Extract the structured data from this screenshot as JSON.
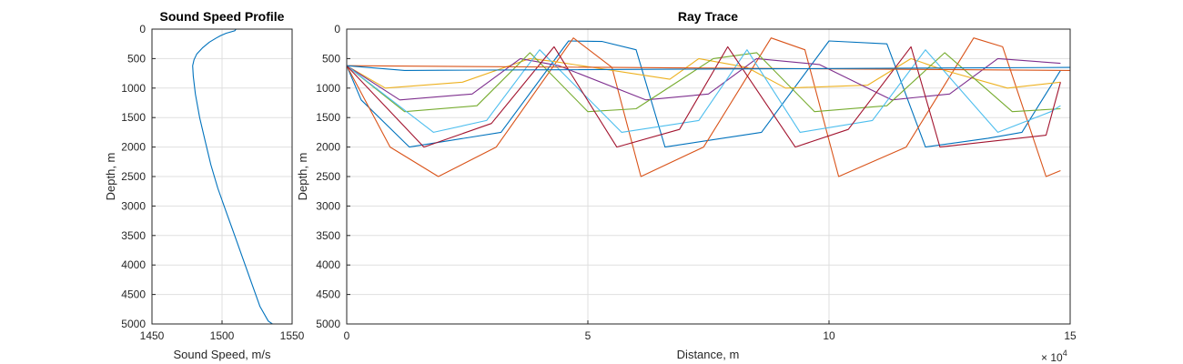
{
  "chart_data": [
    {
      "type": "line",
      "title": "Sound Speed Profile",
      "xlabel": "Sound Speed, m/s",
      "ylabel": "Depth, m",
      "xlim": [
        1450,
        1550
      ],
      "ylim": [
        0,
        5000
      ],
      "y_reversed": true,
      "xticks": [
        1450,
        1500,
        1550
      ],
      "yticks": [
        0,
        500,
        1000,
        1500,
        2000,
        2500,
        3000,
        3500,
        4000,
        4500,
        5000
      ],
      "grid": true,
      "series": [
        {
          "name": "profile",
          "color": "#0072BD",
          "x": [
            1510,
            1509,
            1503,
            1499,
            1496,
            1491,
            1486,
            1482,
            1480,
            1479,
            1479.5,
            1481,
            1484,
            1488,
            1492,
            1497,
            1503,
            1509,
            1515,
            1521,
            1527,
            1533,
            1536
          ],
          "y": [
            0,
            30,
            70,
            110,
            150,
            220,
            320,
            420,
            520,
            620,
            800,
            1100,
            1500,
            1900,
            2300,
            2700,
            3100,
            3500,
            3900,
            4300,
            4700,
            4950,
            5000
          ]
        }
      ]
    },
    {
      "type": "line",
      "title": "Ray Trace",
      "xlabel": "Distance, m",
      "ylabel": "Depth, m",
      "x_exponent_label": "× 10",
      "x_exponent": "4",
      "xlim": [
        0,
        15
      ],
      "xtick_labels_scaled": true,
      "ylim": [
        0,
        5000
      ],
      "y_reversed": true,
      "xticks": [
        0,
        5,
        10,
        15
      ],
      "yticks": [
        0,
        500,
        1000,
        1500,
        2000,
        2500,
        3000,
        3500,
        4000,
        4500,
        5000
      ],
      "grid": true,
      "series": [
        {
          "name": "ray-blue",
          "color": "#0072BD",
          "x": [
            0,
            0.3,
            1.3,
            3.2,
            4.6,
            5.3,
            6.0,
            6.6,
            8.6,
            10.0,
            11.2,
            12.0,
            13.3,
            14.0,
            14.8
          ],
          "y": [
            620,
            1200,
            2000,
            1750,
            200,
            210,
            350,
            2000,
            1750,
            200,
            250,
            2000,
            1850,
            1750,
            700
          ]
        },
        {
          "name": "ray-orange",
          "color": "#D95319",
          "x": [
            0,
            0.9,
            1.9,
            3.1,
            4.7,
            5.5,
            6.1,
            7.4,
            8.8,
            9.5,
            10.2,
            11.6,
            13.0,
            13.6,
            14.5,
            14.8
          ],
          "y": [
            620,
            2000,
            2500,
            2000,
            150,
            650,
            2500,
            2000,
            150,
            350,
            2500,
            2000,
            150,
            300,
            2500,
            2400
          ]
        },
        {
          "name": "ray-yellow",
          "color": "#EDB120",
          "x": [
            0,
            0.8,
            2.4,
            3.8,
            4.3,
            6.7,
            7.3,
            8.3,
            9.1,
            10.8,
            11.7,
            12.4,
            13.7,
            14.8
          ],
          "y": [
            620,
            1000,
            900,
            500,
            550,
            850,
            500,
            650,
            1000,
            950,
            500,
            700,
            1000,
            900
          ]
        },
        {
          "name": "ray-purple",
          "color": "#7E2F8E",
          "x": [
            0,
            1.1,
            2.6,
            3.6,
            4.4,
            6.2,
            7.5,
            8.5,
            9.8,
            11.3,
            12.5,
            13.5,
            14.8
          ],
          "y": [
            620,
            1200,
            1100,
            500,
            620,
            1200,
            1100,
            500,
            600,
            1200,
            1100,
            500,
            580
          ]
        },
        {
          "name": "ray-green",
          "color": "#77AC30",
          "x": [
            0,
            1.2,
            2.7,
            3.8,
            5.0,
            6.0,
            7.6,
            8.5,
            9.7,
            11.2,
            12.4,
            13.8,
            14.8
          ],
          "y": [
            620,
            1400,
            1300,
            400,
            1400,
            1350,
            500,
            400,
            1400,
            1300,
            400,
            1400,
            1350
          ]
        },
        {
          "name": "ray-cyan",
          "color": "#4DBEEE",
          "x": [
            0,
            1.8,
            2.9,
            4.0,
            5.7,
            7.3,
            8.3,
            9.4,
            10.9,
            12.0,
            13.5,
            14.6,
            14.8
          ],
          "y": [
            620,
            1750,
            1550,
            350,
            1750,
            1550,
            350,
            1750,
            1550,
            350,
            1750,
            1400,
            1300
          ]
        },
        {
          "name": "ray-darkred",
          "color": "#A2142F",
          "x": [
            0,
            1.6,
            3.0,
            4.3,
            5.6,
            6.9,
            7.9,
            9.3,
            10.4,
            11.7,
            12.3,
            14.5,
            14.8
          ],
          "y": [
            620,
            2000,
            1600,
            300,
            2000,
            1700,
            300,
            2000,
            1700,
            300,
            2000,
            1800,
            900
          ]
        },
        {
          "name": "ray-flat-orange",
          "color": "#D95319",
          "x": [
            0,
            15
          ],
          "y": [
            620,
            700
          ]
        },
        {
          "name": "ray-flat-blue",
          "color": "#0072BD",
          "x": [
            0,
            1.2,
            15
          ],
          "y": [
            620,
            700,
            650
          ]
        }
      ]
    }
  ]
}
